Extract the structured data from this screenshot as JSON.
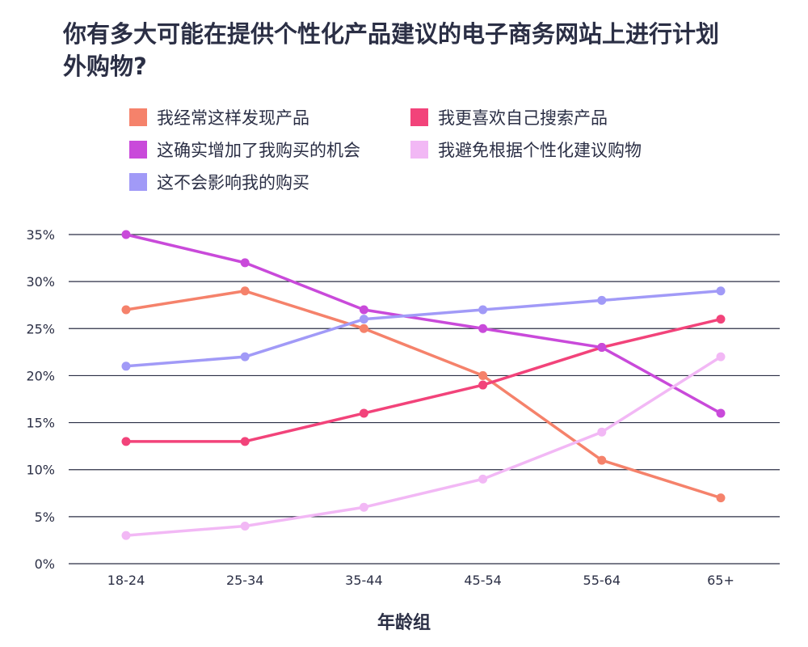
{
  "chart_data": {
    "type": "line",
    "title": "你有多大可能在提供个性化产品建议的电子商务网站上进行计划外购物?",
    "xlabel": "年龄组",
    "ylabel": "",
    "categories": [
      "18-24",
      "25-34",
      "35-44",
      "45-54",
      "55-64",
      "65+"
    ],
    "ylim": [
      0,
      35
    ],
    "yticks": [
      "0%",
      "5%",
      "10%",
      "15%",
      "20%",
      "25%",
      "30%",
      "35%"
    ],
    "grid": true,
    "legend_position": "top",
    "series": [
      {
        "name": "我经常这样发现产品",
        "color": "#f5826b",
        "values": [
          27,
          29,
          25,
          20,
          11,
          7
        ]
      },
      {
        "name": "我更喜欢自己搜索产品",
        "color": "#f2437a",
        "values": [
          13,
          13,
          16,
          19,
          23,
          26
        ]
      },
      {
        "name": "这确实增加了我购买的机会",
        "color": "#c94ada",
        "values": [
          35,
          32,
          27,
          25,
          23,
          16
        ]
      },
      {
        "name": "我避免根据个性化建议购物",
        "color": "#f2b8f5",
        "values": [
          3,
          4,
          6,
          9,
          14,
          22
        ]
      },
      {
        "name": "这不会影响我的购买",
        "color": "#a19af7",
        "values": [
          21,
          22,
          26,
          27,
          28,
          29
        ]
      }
    ]
  }
}
